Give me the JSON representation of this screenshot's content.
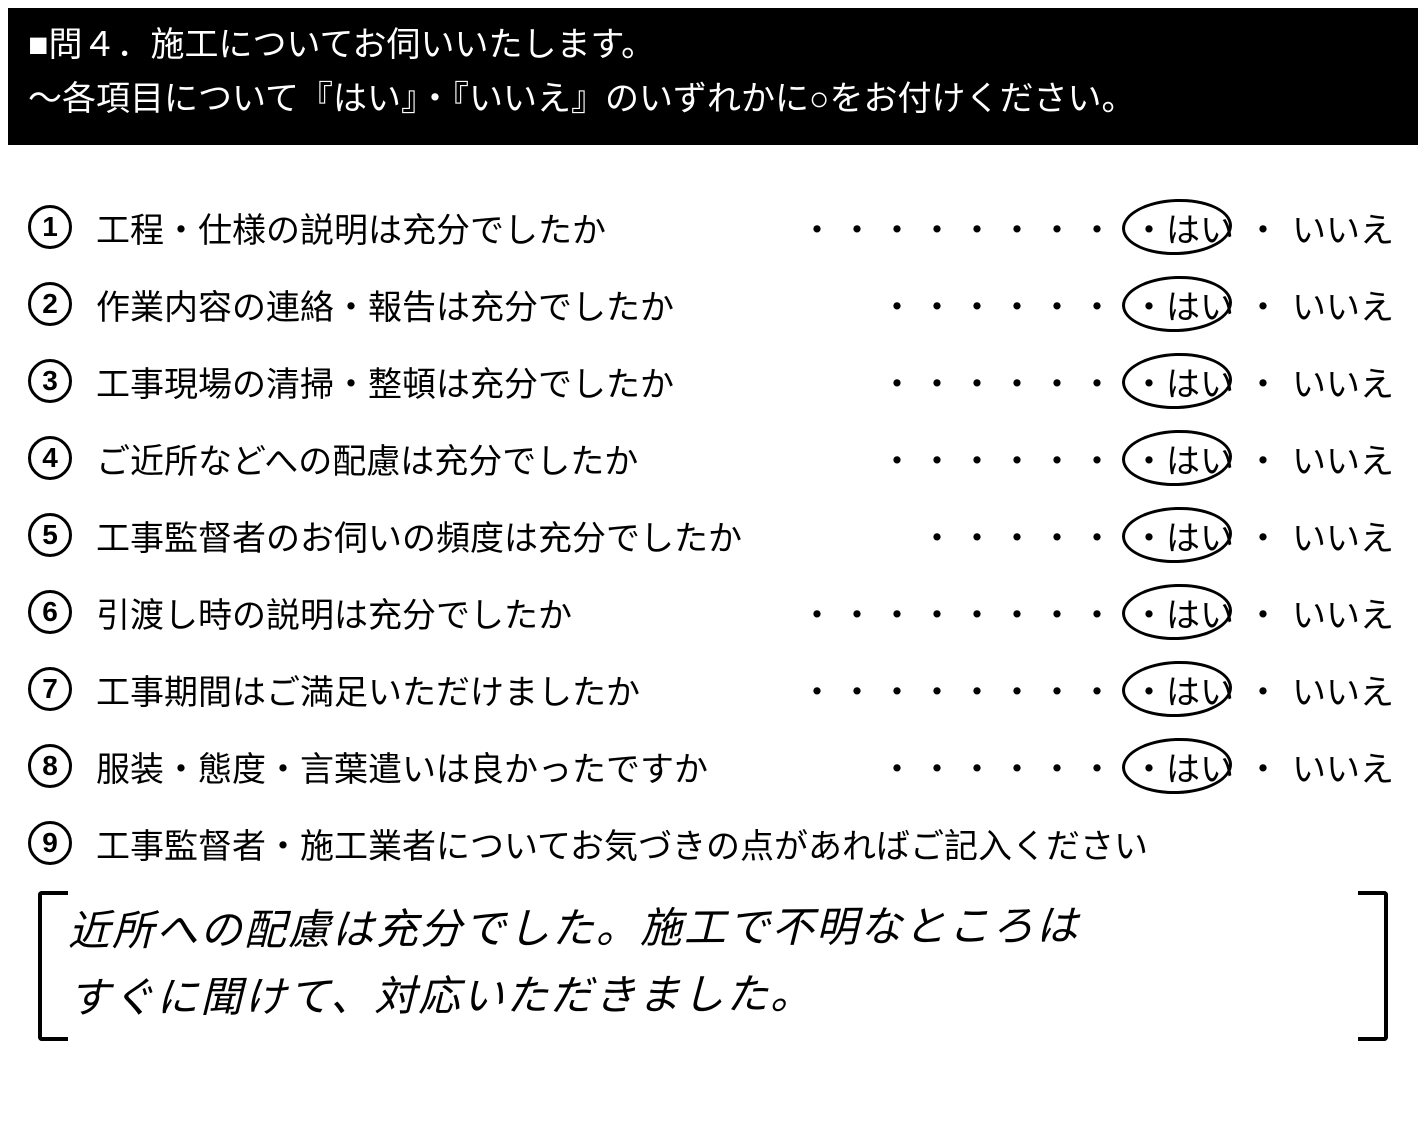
{
  "header": {
    "line1": "■問４．施工についてお伺いいたします。",
    "line2": "～各項目について『はい』・『いいえ』のいずれかに○をお付けください。"
  },
  "answers": {
    "yes_label": "・はい",
    "no_label": "いいえ",
    "separator": "・"
  },
  "questions": [
    {
      "number": "1",
      "text": "工程・仕様の説明は充分でしたか",
      "dots": "・・・・・・・・",
      "circled": "yes"
    },
    {
      "number": "2",
      "text": "作業内容の連絡・報告は充分でしたか",
      "dots": "・・・・・・",
      "circled": "yes"
    },
    {
      "number": "3",
      "text": "工事現場の清掃・整頓は充分でしたか",
      "dots": "・・・・・・",
      "circled": "yes"
    },
    {
      "number": "4",
      "text": "ご近所などへの配慮は充分でしたか",
      "dots": "・・・・・・",
      "circled": "yes"
    },
    {
      "number": "5",
      "text": "工事監督者のお伺いの頻度は充分でしたか",
      "dots": "・・・・・",
      "circled": "yes"
    },
    {
      "number": "6",
      "text": "引渡し時の説明は充分でしたか",
      "dots": "・・・・・・・・",
      "circled": "yes"
    },
    {
      "number": "7",
      "text": "工事期間はご満足いただけましたか",
      "dots": "・・・・・・・・",
      "circled": "yes"
    },
    {
      "number": "8",
      "text": "服装・態度・言葉遣いは良かったですか",
      "dots": "・・・・・・",
      "circled": "yes"
    }
  ],
  "question9": {
    "number": "9",
    "text": "工事監督者・施工業者についてお気づきの点があればご記入ください"
  },
  "handwritten": {
    "line1": "近所への配慮は充分でした。施工で不明なところは",
    "line2": "すぐに聞けて、対応いただきました。"
  },
  "styling": {
    "header_bg": "#000000",
    "header_fg": "#ffffff",
    "body_bg": "#ffffff",
    "text_color": "#000000",
    "font_size_header": 34,
    "font_size_body": 34,
    "font_size_number": 28,
    "font_size_handwritten": 42,
    "circle_number_size": 44,
    "circle_mark_width": 110,
    "circle_mark_height": 56,
    "row_spacing": 28
  }
}
